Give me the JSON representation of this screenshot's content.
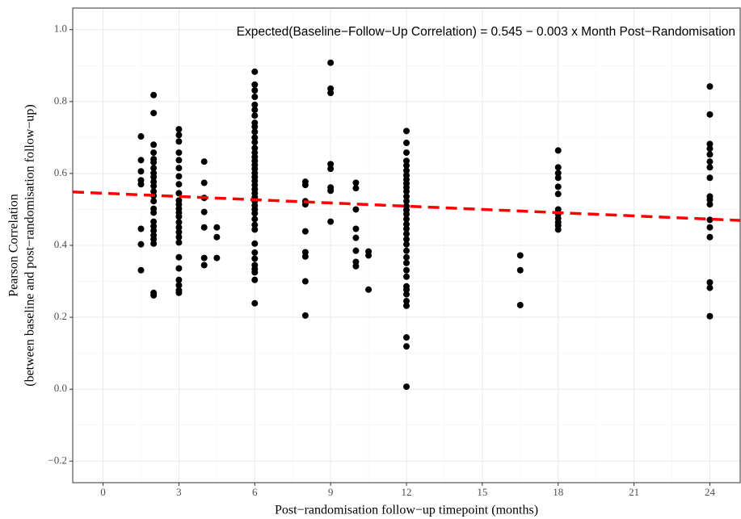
{
  "chart_data": {
    "type": "scatter",
    "annotation": "Expected(Baseline−Follow−Up Correlation) = 0.545 − 0.003 x Month Post−Randomisation",
    "x_label": "Post−randomisation follow−up timepoint (months)",
    "y_label": [
      "Pearson Correlation",
      "(between baseline and post−randomisation follow−up)"
    ],
    "xlim": [
      -1.2,
      25.2
    ],
    "ylim": [
      -0.26,
      1.06
    ],
    "xticks": [
      0,
      3,
      6,
      9,
      12,
      15,
      18,
      21,
      24
    ],
    "yticks": [
      {
        "value": -0.2,
        "label": "−0.2"
      },
      {
        "value": 0,
        "label": "0.0"
      },
      0.2,
      0.4,
      0.6,
      0.8,
      {
        "value": 1,
        "label": "1.0"
      }
    ],
    "grid": true,
    "color": "#000000",
    "x": [
      1.5,
      1.5,
      1.5,
      1.5,
      1.5,
      1.5,
      1.5,
      1.5,
      2,
      2,
      2,
      2,
      2,
      2,
      2,
      2,
      2,
      2,
      2,
      2,
      2,
      2,
      2,
      2,
      2,
      2,
      2,
      2,
      2,
      2,
      2,
      2,
      3,
      3,
      3,
      3,
      3,
      3,
      3,
      3,
      3,
      3,
      3,
      3,
      3,
      3,
      3,
      3,
      3,
      3,
      3,
      3,
      3,
      3,
      3,
      3,
      3,
      4,
      4,
      4,
      4,
      4,
      4,
      4,
      4.5,
      4.5,
      4.5,
      6,
      6,
      6,
      6,
      6,
      6,
      6,
      6,
      6,
      6,
      6,
      6,
      6,
      6,
      6,
      6,
      6,
      6,
      6,
      6,
      6,
      6,
      6,
      6,
      6,
      6,
      6,
      6,
      6,
      6,
      6,
      6,
      6,
      6,
      6,
      6,
      6,
      6,
      6,
      6,
      8,
      8,
      8,
      8,
      8,
      8,
      8,
      8,
      8,
      9,
      9,
      9,
      9,
      9,
      9,
      9,
      9,
      10,
      10,
      10,
      10,
      10,
      10,
      10,
      10,
      10.5,
      10.5,
      10.5,
      12,
      12,
      12,
      12,
      12,
      12,
      12,
      12,
      12,
      12,
      12,
      12,
      12,
      12,
      12,
      12,
      12,
      12,
      12,
      12,
      12,
      12,
      12,
      12,
      12,
      12,
      12,
      12,
      12,
      12,
      12,
      12,
      12,
      12,
      12,
      16.5,
      16.5,
      16.5,
      18,
      18,
      18,
      18,
      18,
      18,
      18,
      18,
      18,
      18,
      18,
      18,
      24,
      24,
      24,
      24,
      24,
      24,
      24,
      24,
      24,
      24,
      24,
      24,
      24,
      24,
      24,
      24,
      24
    ],
    "values": [
      0.703,
      0.637,
      0.606,
      0.581,
      0.57,
      0.446,
      0.403,
      0.331,
      0.818,
      0.768,
      0.68,
      0.658,
      0.64,
      0.631,
      0.615,
      0.601,
      0.59,
      0.577,
      0.565,
      0.55,
      0.538,
      0.523,
      0.502,
      0.491,
      0.466,
      0.453,
      0.441,
      0.428,
      0.417,
      0.405,
      0.268,
      0.261,
      0.723,
      0.707,
      0.689,
      0.658,
      0.637,
      0.615,
      0.592,
      0.57,
      0.545,
      0.525,
      0.514,
      0.502,
      0.491,
      0.48,
      0.464,
      0.45,
      0.437,
      0.423,
      0.408,
      0.367,
      0.336,
      0.304,
      0.289,
      0.275,
      0.268,
      0.633,
      0.574,
      0.532,
      0.493,
      0.45,
      0.365,
      0.345,
      0.45,
      0.423,
      0.365,
      0.883,
      0.847,
      0.831,
      0.813,
      0.791,
      0.777,
      0.761,
      0.741,
      0.73,
      0.716,
      0.7,
      0.687,
      0.671,
      0.658,
      0.646,
      0.635,
      0.624,
      0.613,
      0.601,
      0.59,
      0.579,
      0.568,
      0.556,
      0.545,
      0.534,
      0.523,
      0.511,
      0.5,
      0.489,
      0.473,
      0.457,
      0.444,
      0.405,
      0.38,
      0.363,
      0.345,
      0.334,
      0.325,
      0.304,
      0.239,
      0.577,
      0.568,
      0.523,
      0.514,
      0.439,
      0.381,
      0.369,
      0.3,
      0.205,
      0.908,
      0.836,
      0.824,
      0.626,
      0.613,
      0.561,
      0.552,
      0.466,
      0.574,
      0.559,
      0.5,
      0.446,
      0.421,
      0.385,
      0.354,
      0.342,
      0.383,
      0.372,
      0.277,
      0.718,
      0.685,
      0.658,
      0.635,
      0.622,
      0.608,
      0.595,
      0.583,
      0.572,
      0.561,
      0.55,
      0.536,
      0.523,
      0.509,
      0.498,
      0.487,
      0.473,
      0.459,
      0.446,
      0.432,
      0.417,
      0.403,
      0.385,
      0.367,
      0.351,
      0.331,
      0.313,
      0.286,
      0.277,
      0.264,
      0.245,
      0.232,
      0.144,
      0.119,
      0.007,
      0.372,
      0.331,
      0.234,
      0.664,
      0.617,
      0.601,
      0.588,
      0.543,
      0.563,
      0.5,
      0.487,
      0.475,
      0.464,
      0.455,
      0.444,
      0.842,
      0.764,
      0.682,
      0.669,
      0.653,
      0.633,
      0.617,
      0.588,
      0.536,
      0.527,
      0.514,
      0.471,
      0.45,
      0.423,
      0.297,
      0.282,
      0.203
    ],
    "trend": {
      "intercept": 0.545,
      "slope": -0.003,
      "color": "#ff0000"
    }
  }
}
